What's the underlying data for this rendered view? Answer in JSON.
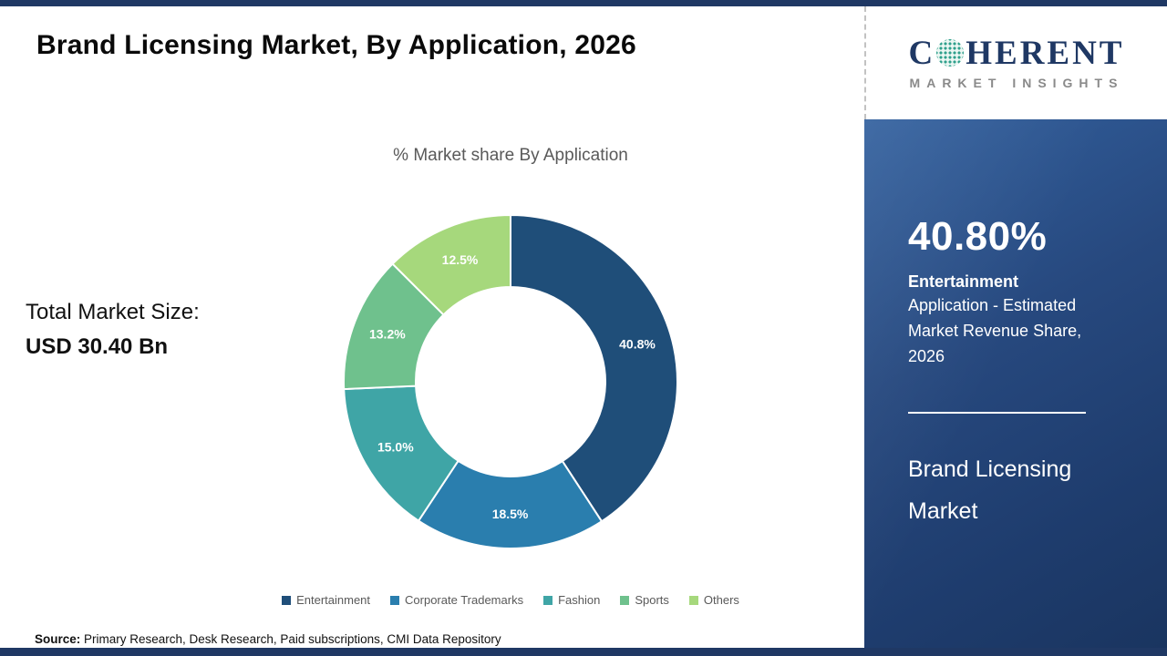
{
  "header": {
    "title": "Brand Licensing Market, By Application, 2026"
  },
  "logo": {
    "c": "C",
    "rest": "HERENT",
    "subtitle": "MARKET INSIGHTS"
  },
  "chart_data": {
    "type": "pie",
    "donut": true,
    "title": "% Market share By Application",
    "categories": [
      "Entertainment",
      "Corporate Trademarks",
      "Fashion",
      "Sports",
      "Others"
    ],
    "values": [
      40.8,
      18.5,
      15.0,
      13.2,
      12.5
    ],
    "labels": [
      "40.8%",
      "18.5%",
      "15.0%",
      "13.2%",
      "12.5%"
    ],
    "colors": [
      "#1F4E79",
      "#2A7EAE",
      "#3FA5A6",
      "#6FC18D",
      "#A6D87C"
    ],
    "start_angle": -90,
    "direction": "clockwise",
    "legend_position": "bottom",
    "label_color": "#ffffff"
  },
  "total_market": {
    "label": "Total Market Size:",
    "value": "USD 30.40 Bn"
  },
  "sidebar": {
    "stat_value": "40.80%",
    "stat_bold": "Entertainment",
    "stat_desc": "Application - Estimated Market Revenue Share, 2026",
    "product_name": "Brand Licensing Market"
  },
  "source": {
    "label": "Source:",
    "text": " Primary Research, Desk Research, Paid subscriptions, CMI Data Repository"
  }
}
